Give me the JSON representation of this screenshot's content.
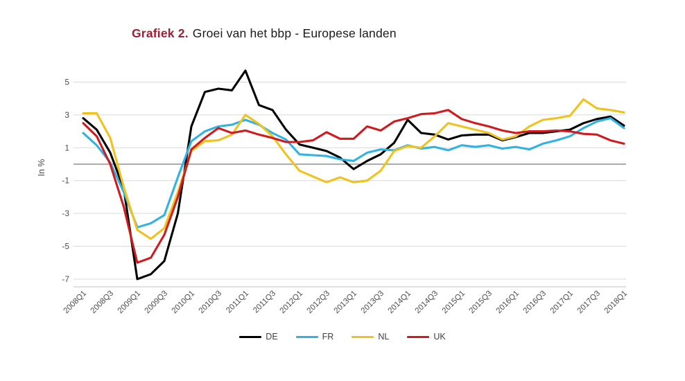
{
  "title": {
    "prefix": "Grafiek 2.",
    "text": "Groei van het bbp - Europese landen"
  },
  "colors": {
    "title_accent": "#a21c33",
    "axis_text": "#4d4d4d",
    "gridline": "#d9d9d9",
    "zero_line": "#8f8f8f",
    "axis_line": "#c2c2c2"
  },
  "chart_data": {
    "type": "line",
    "title": "Grafiek 2. Groei van het bbp - Europese landen",
    "ylabel": "In %",
    "xlabel": "",
    "y_ticks": [
      5,
      3,
      1,
      -1,
      -3,
      -5,
      -7
    ],
    "ylim": [
      -7.6,
      5.9
    ],
    "x_tick_step": 2,
    "grid": "horizontal",
    "legend_position": "bottom",
    "categories": [
      "2008Q1",
      "2008Q2",
      "2008Q3",
      "2008Q4",
      "2009Q1",
      "2009Q2",
      "2009Q3",
      "2009Q4",
      "2010Q1",
      "2010Q2",
      "2010Q3",
      "2010Q4",
      "2011Q1",
      "2011Q2",
      "2011Q3",
      "2011Q4",
      "2012Q1",
      "2012Q2",
      "2012Q3",
      "2012Q4",
      "2013Q1",
      "2013Q2",
      "2013Q3",
      "2013Q4",
      "2014Q1",
      "2014Q2",
      "2014Q3",
      "2014Q4",
      "2015Q1",
      "2015Q2",
      "2015Q3",
      "2015Q4",
      "2016Q1",
      "2016Q2",
      "2016Q3",
      "2016Q4",
      "2017Q1",
      "2017Q2",
      "2017Q3",
      "2017Q4",
      "2018Q1"
    ],
    "series": [
      {
        "name": "DE",
        "color": "#000000",
        "values": [
          2.8,
          2.1,
          0.7,
          -1.5,
          -7.0,
          -6.7,
          -5.9,
          -3.0,
          2.3,
          4.4,
          4.6,
          4.5,
          5.7,
          3.6,
          3.3,
          2.1,
          1.2,
          1.0,
          0.8,
          0.4,
          -0.3,
          0.2,
          0.6,
          1.3,
          2.7,
          1.9,
          1.8,
          1.5,
          1.75,
          1.8,
          1.8,
          1.45,
          1.65,
          1.9,
          1.9,
          2.0,
          2.1,
          2.5,
          2.75,
          2.9,
          2.35
        ]
      },
      {
        "name": "FR",
        "color": "#2fb3e3",
        "values": [
          1.9,
          1.15,
          0.1,
          -1.7,
          -3.85,
          -3.6,
          -3.1,
          -0.8,
          1.4,
          2.0,
          2.3,
          2.4,
          2.7,
          2.4,
          1.9,
          1.5,
          0.6,
          0.55,
          0.5,
          0.3,
          0.2,
          0.7,
          0.9,
          0.85,
          1.15,
          0.95,
          1.05,
          0.85,
          1.15,
          1.05,
          1.15,
          0.95,
          1.05,
          0.9,
          1.25,
          1.45,
          1.7,
          2.2,
          2.6,
          2.8,
          2.2
        ]
      },
      {
        "name": "NL",
        "color": "#f2c21c",
        "values": [
          3.1,
          3.1,
          1.6,
          -1.4,
          -4.0,
          -4.55,
          -3.9,
          -1.7,
          0.8,
          1.4,
          1.45,
          1.8,
          3.0,
          2.45,
          1.7,
          0.6,
          -0.4,
          -0.75,
          -1.1,
          -0.8,
          -1.1,
          -1.0,
          -0.4,
          0.8,
          1.1,
          1.0,
          1.7,
          2.5,
          2.3,
          2.1,
          1.9,
          1.5,
          1.7,
          2.3,
          2.7,
          2.8,
          2.95,
          3.95,
          3.4,
          3.3,
          3.15
        ]
      },
      {
        "name": "UK",
        "color": "#d01a1d",
        "values": [
          2.5,
          1.7,
          0.0,
          -2.6,
          -6.0,
          -5.7,
          -4.3,
          -2.0,
          0.9,
          1.6,
          2.2,
          1.9,
          2.05,
          1.8,
          1.6,
          1.35,
          1.35,
          1.45,
          1.95,
          1.55,
          1.55,
          2.3,
          2.05,
          2.6,
          2.8,
          3.05,
          3.1,
          3.3,
          2.75,
          2.5,
          2.3,
          2.05,
          1.9,
          2.0,
          2.0,
          2.05,
          2.0,
          1.85,
          1.8,
          1.45,
          1.25
        ]
      }
    ]
  }
}
